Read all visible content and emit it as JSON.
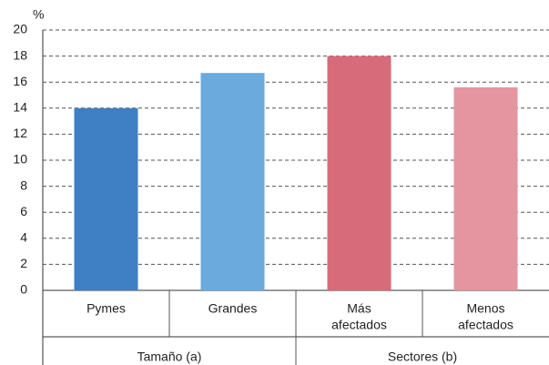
{
  "chart_data": {
    "type": "bar",
    "y_label": "%",
    "categories": [
      [
        "Pymes"
      ],
      [
        "Grandes"
      ],
      [
        "Más",
        "afectados"
      ],
      [
        "Menos",
        "afectados"
      ]
    ],
    "values": [
      14,
      16.7,
      18,
      15.6
    ],
    "colors": [
      "#3f7fc4",
      "#6aaadc",
      "#d86b7a",
      "#e5959f"
    ],
    "groups": [
      {
        "name": "Tamaño (a)",
        "size": 2
      },
      {
        "name": "Sectores (b)",
        "size": 2
      }
    ],
    "ylim": [
      0,
      20
    ],
    "yticks": [
      0,
      2,
      4,
      6,
      8,
      10,
      12,
      14,
      16,
      18,
      20
    ],
    "grid": true
  }
}
